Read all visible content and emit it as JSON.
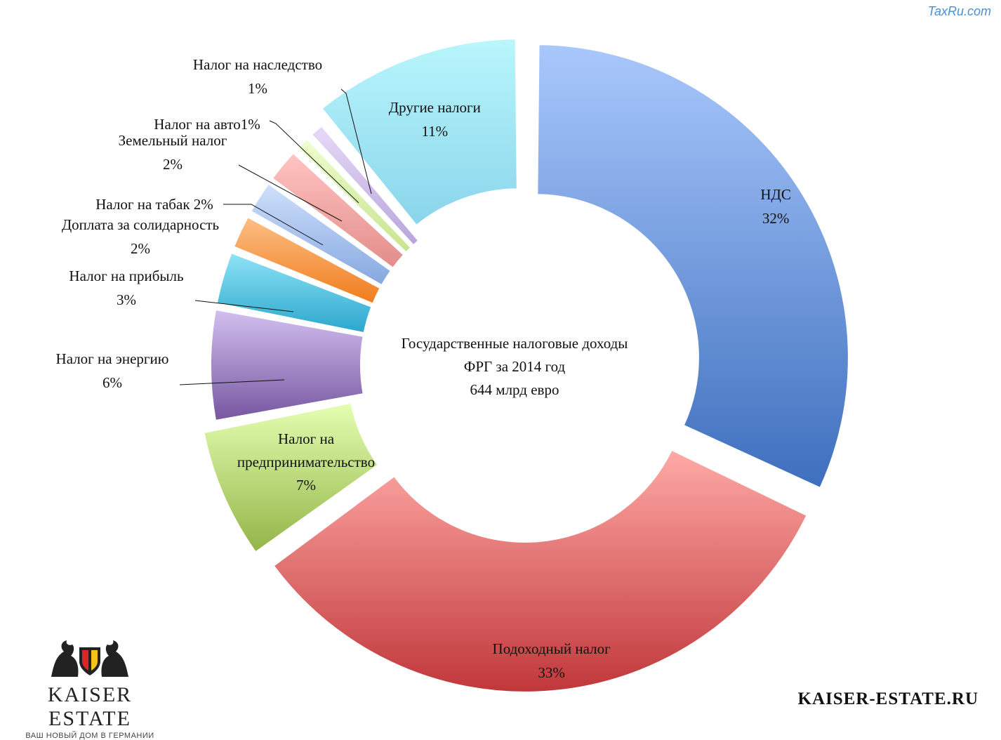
{
  "watermark": "TaxRu.com",
  "brand": {
    "name": "KAISER ESTATE",
    "tagline": "ВАШ НОВЫЙ ДОМ В ГЕРМАНИИ",
    "site": "KAISER-ESTATE.RU"
  },
  "chart_data": {
    "type": "donut",
    "center_title": [
      "Государственные налоговые доходы",
      "ФРГ за 2014 год",
      "644 млрд евро"
    ],
    "slices": [
      {
        "label": "НДС",
        "value": 32,
        "value_label": "32%",
        "colors": [
          "#a9c8fc",
          "#3e6fbd"
        ],
        "exploded": true
      },
      {
        "label": "Подоходный налог",
        "value": 33,
        "value_label": "33%",
        "colors": [
          "#ffaaa6",
          "#c0373a"
        ],
        "exploded": true
      },
      {
        "label": "Налог на предпринимательство",
        "value": 7,
        "value_label": "7%",
        "colors": [
          "#e4ffb2",
          "#93b547"
        ],
        "exploded": true
      },
      {
        "label": "Налог на энергию",
        "value": 6,
        "value_label": "6%",
        "colors": [
          "#d3c0ef",
          "#7656a0"
        ],
        "exploded": false
      },
      {
        "label": "Налог на прибыль",
        "value": 3,
        "value_label": "3%",
        "colors": [
          "#8fe4f6",
          "#2aa6cd"
        ],
        "exploded": false
      },
      {
        "label": "Доплата за солидарность",
        "value": 2,
        "value_label": "2%",
        "colors": [
          "#fdbf85",
          "#f07c1c"
        ],
        "exploded": false
      },
      {
        "label": "Налог на табак",
        "value": 2,
        "value_label": "2%",
        "colors": [
          "#cfe0fb",
          "#85a8e0"
        ],
        "exploded": false
      },
      {
        "label": "Земельный налог",
        "value": 2,
        "value_label": "2%",
        "colors": [
          "#ffc4c2",
          "#e28d8a"
        ],
        "exploded": false
      },
      {
        "label": "Налог на авто",
        "value": 1,
        "value_label": "1%",
        "colors": [
          "#eeffd0",
          "#c8e38e"
        ],
        "exploded": false
      },
      {
        "label": "Налог на наследство",
        "value": 1,
        "value_label": "1%",
        "colors": [
          "#e6daf8",
          "#b9a5dc"
        ],
        "exploded": false
      },
      {
        "label": "Другие налоги",
        "value": 11,
        "value_label": "11%",
        "colors": [
          "#b9f6fc",
          "#8ad5eb"
        ],
        "exploded": true
      }
    ]
  }
}
